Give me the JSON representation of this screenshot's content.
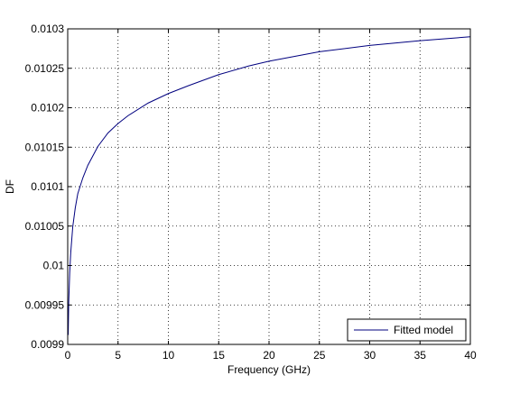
{
  "chart_data": {
    "type": "line",
    "title": "",
    "xlabel": "Frequency (GHz)",
    "ylabel": "DF",
    "xlim": [
      0,
      40
    ],
    "ylim": [
      0.0099,
      0.0103
    ],
    "x_ticks": [
      "0",
      "5",
      "10",
      "15",
      "20",
      "25",
      "30",
      "35",
      "40"
    ],
    "y_ticks": [
      "0.0099",
      "0.00995",
      "0.01",
      "0.01005",
      "0.0101",
      "0.01015",
      "0.0102",
      "0.01025",
      "0.0103"
    ],
    "grid": true,
    "legend_position": "bottom-right",
    "series": [
      {
        "name": "Fitted model",
        "color": "#00007f",
        "x": [
          0.05,
          0.1,
          0.2,
          0.3,
          0.5,
          0.75,
          1,
          1.5,
          2,
          3,
          4,
          5,
          6,
          8,
          10,
          12,
          15,
          18,
          20,
          25,
          30,
          35,
          40
        ],
        "y": [
          0.009912,
          0.009953,
          0.009991,
          0.010016,
          0.010049,
          0.010073,
          0.010091,
          0.010111,
          0.010127,
          0.010151,
          0.010168,
          0.01018,
          0.01019,
          0.010206,
          0.010218,
          0.010228,
          0.010242,
          0.010253,
          0.010259,
          0.010271,
          0.010279,
          0.010285,
          0.01029
        ]
      }
    ]
  }
}
